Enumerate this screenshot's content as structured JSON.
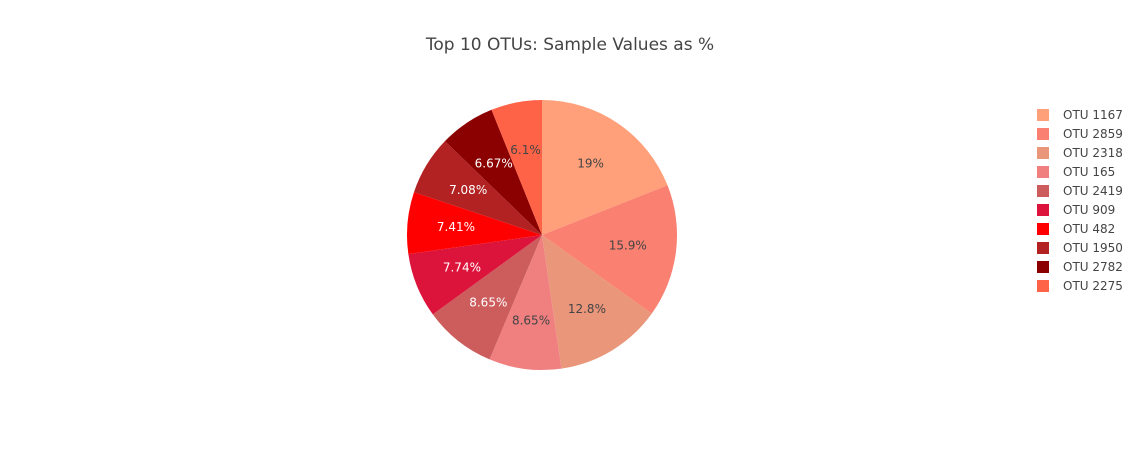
{
  "chart_data": {
    "type": "pie",
    "title": "Top 10 OTUs: Sample Values as %",
    "labels": [
      "OTU 1167",
      "OTU 2859",
      "OTU 2318",
      "OTU 165",
      "OTU 2419",
      "OTU 909",
      "OTU 482",
      "OTU 1950",
      "OTU 2782",
      "OTU 2275"
    ],
    "percent_labels": [
      "19%",
      "15.9%",
      "12.8%",
      "8.65%",
      "8.65%",
      "7.74%",
      "7.41%",
      "7.08%",
      "6.67%",
      "6.1%"
    ],
    "values": [
      19,
      15.9,
      12.8,
      8.65,
      8.65,
      7.74,
      7.41,
      7.08,
      6.67,
      6.1
    ],
    "colors": [
      "#FFA07A",
      "#FA8072",
      "#E9967A",
      "#F08080",
      "#CD5C5C",
      "#DC143C",
      "#FF0000",
      "#B22222",
      "#8B0000",
      "#FF6347"
    ],
    "text_colors": [
      "#444444",
      "#444444",
      "#444444",
      "#444444",
      "#ffffff",
      "#ffffff",
      "#ffffff",
      "#ffffff",
      "#ffffff",
      "#444444"
    ],
    "direction": "clockwise",
    "legend_position": "right"
  }
}
